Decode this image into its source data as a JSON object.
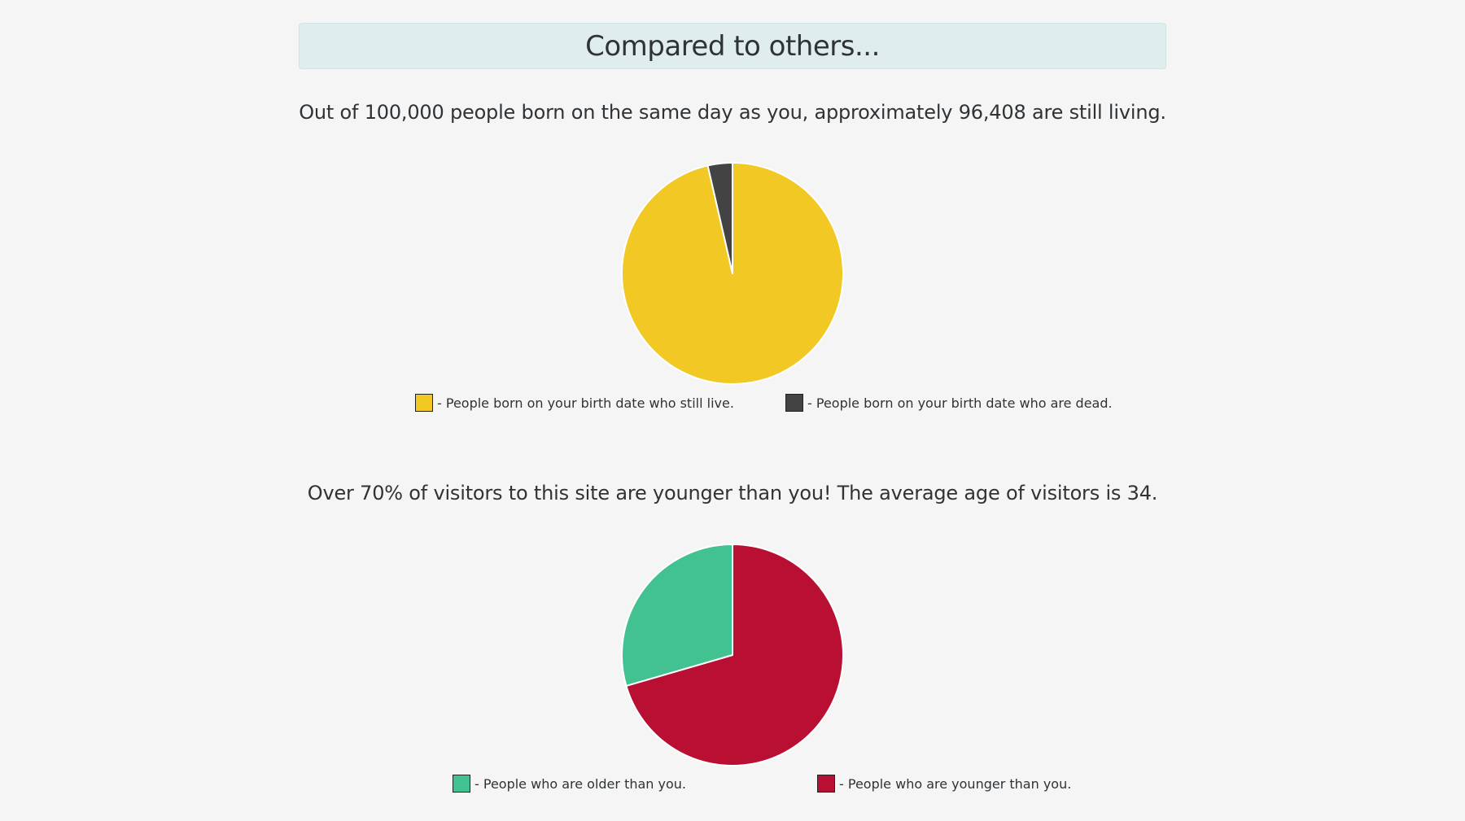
{
  "header": {
    "title": "Compared to others..."
  },
  "captions": {
    "survival": "Out of 100,000 people born on the same day as you, approximately 96,408 are still living.",
    "visitors": "Over 70% of visitors to this site are younger than you! The average age of visitors is 34."
  },
  "chart_data": [
    {
      "type": "pie",
      "title": "",
      "slices": [
        {
          "label": "- People born on your birth date who still live.",
          "value": 96408,
          "color": "#f2c824"
        },
        {
          "label": "- People born on your birth date who are dead.",
          "value": 3592,
          "color": "#434343"
        }
      ],
      "start_angle": "top",
      "direction": "clockwise"
    },
    {
      "type": "pie",
      "title": "",
      "slices": [
        {
          "label": "- People who are younger than you.",
          "value": 70.5,
          "color": "#b90f33"
        },
        {
          "label": "- People who are older than you.",
          "value": 29.5,
          "color": "#42c290"
        }
      ],
      "start_angle": "top",
      "direction": "clockwise"
    }
  ],
  "legends": {
    "chart1": [
      {
        "label": "- People born on your birth date who still live.",
        "color": "#f2c824"
      },
      {
        "label": "- People born on your birth date who are dead.",
        "color": "#434343"
      }
    ],
    "chart2": [
      {
        "label": "- People who are older than you.",
        "color": "#42c290"
      },
      {
        "label": "- People who are younger than you.",
        "color": "#b90f33"
      }
    ]
  }
}
